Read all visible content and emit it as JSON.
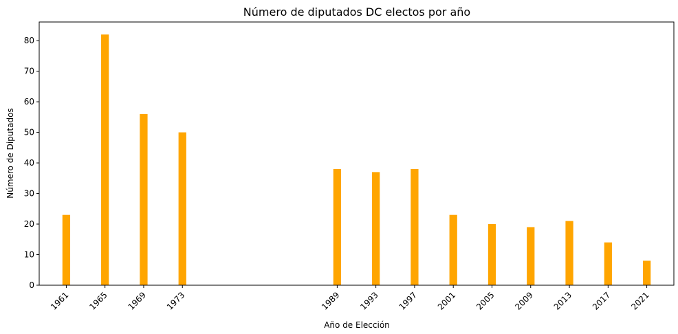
{
  "chart_data": {
    "type": "bar",
    "title": "Número de diputados DC electos por año",
    "xlabel": "Año de Elección",
    "ylabel": "Número de Diputados",
    "x": [
      1961,
      1965,
      1969,
      1973,
      1989,
      1993,
      1997,
      2001,
      2005,
      2009,
      2013,
      2017,
      2021
    ],
    "categories": [
      "1961",
      "1965",
      "1969",
      "1973",
      "1989",
      "1993",
      "1997",
      "2001",
      "2005",
      "2009",
      "2013",
      "2017",
      "2021"
    ],
    "values": [
      23,
      82,
      56,
      50,
      38,
      37,
      38,
      23,
      20,
      19,
      21,
      14,
      8
    ],
    "xlim": [
      1958.2,
      2023.8
    ],
    "ylim": [
      0,
      86.1
    ],
    "yticks": [
      0,
      10,
      20,
      30,
      40,
      50,
      60,
      70,
      80
    ],
    "bar_width_years": 0.8,
    "bar_color": "#ffa500",
    "grid": false,
    "legend": "none"
  }
}
